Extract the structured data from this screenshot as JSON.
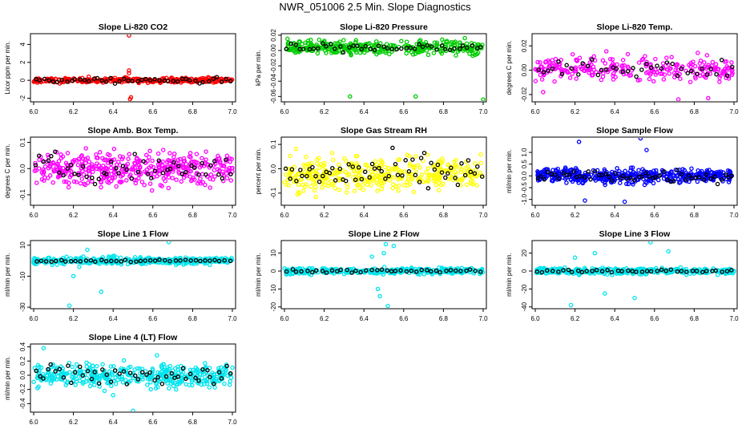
{
  "page": {
    "title": "NWR_051006  2.5 Min. Slope Diagnostics"
  },
  "chart_data": [
    {
      "type": "scatter",
      "title": "Slope Li-820 CO2",
      "ylabel": "Licor ppm per min.",
      "xlim": [
        6.0,
        7.0
      ],
      "ylim": [
        -2.4,
        5.2
      ],
      "xticks": [
        6.0,
        6.2,
        6.4,
        6.6,
        6.8,
        7.0
      ],
      "yticks": [
        -2,
        0,
        2,
        4
      ],
      "colors": {
        "points": "#ff0000",
        "highlight": "#000000"
      },
      "series": {
        "base": 0.0,
        "spread": 0.18,
        "n": 360,
        "nblack": 45,
        "blackSpread": 0.25,
        "outliers": [
          [
            6.48,
            5.0
          ],
          [
            6.48,
            1.1
          ],
          [
            6.48,
            0.8
          ],
          [
            6.49,
            -1.9
          ],
          [
            6.485,
            -2.1
          ]
        ]
      }
    },
    {
      "type": "scatter",
      "title": "Slope Li-820 Pressure",
      "ylabel": "kPa per min.",
      "xlim": [
        6.0,
        7.0
      ],
      "ylim": [
        -0.067,
        0.022
      ],
      "xticks": [
        6.0,
        6.2,
        6.4,
        6.6,
        6.8,
        7.0
      ],
      "yticks": [
        -0.06,
        -0.04,
        -0.02,
        0.0,
        0.02
      ],
      "colors": {
        "points": "#00cc00",
        "highlight": "#000000"
      },
      "series": {
        "base": 0.004,
        "spread": 0.0065,
        "n": 360,
        "nblack": 45,
        "blackSpread": 0.004,
        "outliers": [
          [
            6.33,
            -0.06
          ],
          [
            6.66,
            -0.06
          ],
          [
            7.0,
            -0.064
          ]
        ]
      }
    },
    {
      "type": "scatter",
      "title": "Slope Li-820 Temp.",
      "ylabel": "degrees C per min.",
      "xlim": [
        6.0,
        7.0
      ],
      "ylim": [
        -0.026,
        0.03
      ],
      "xticks": [
        6.0,
        6.2,
        6.4,
        6.6,
        6.8,
        7.0
      ],
      "yticks": [
        -0.02,
        0.0,
        0.02
      ],
      "colors": {
        "points": "#ff00ff",
        "highlight": "#000000"
      },
      "series": {
        "base": 0.001,
        "spread": 0.007,
        "n": 260,
        "nblack": 40,
        "blackSpread": 0.005,
        "outliers": [
          [
            6.87,
            -0.023
          ],
          [
            6.72,
            -0.024
          ],
          [
            6.04,
            -0.018
          ]
        ]
      }
    },
    {
      "type": "scatter",
      "title": "Slope Amb. Box Temp.",
      "ylabel": "degrees C per min.",
      "xlim": [
        6.0,
        7.0
      ],
      "ylim": [
        -0.14,
        0.12
      ],
      "xticks": [
        6.0,
        6.2,
        6.4,
        6.6,
        6.8,
        7.0
      ],
      "yticks": [
        -0.1,
        0.0,
        0.1
      ],
      "colors": {
        "points": "#ff00ff",
        "highlight": "#000000"
      },
      "series": {
        "base": 0.0,
        "spread": 0.045,
        "n": 420,
        "nblack": 50,
        "blackSpread": 0.04,
        "outliers": []
      }
    },
    {
      "type": "scatter",
      "title": "Slope Gas Stream RH",
      "ylabel": "percent per min.",
      "xlim": [
        6.0,
        7.0
      ],
      "ylim": [
        -0.15,
        0.13
      ],
      "xticks": [
        6.0,
        6.2,
        6.4,
        6.6,
        6.8,
        7.0
      ],
      "yticks": [
        -0.1,
        0.0,
        0.1
      ],
      "colors": {
        "points": "#ffff00",
        "highlight": "#000000"
      },
      "series": {
        "base": -0.02,
        "spread": 0.05,
        "n": 380,
        "nblack": 60,
        "blackSpread": 0.05,
        "outliers": []
      }
    },
    {
      "type": "scatter",
      "title": "Slope Sample Flow",
      "ylabel": "ml/min per min.",
      "xlim": [
        6.0,
        7.0
      ],
      "ylim": [
        -1.25,
        1.65
      ],
      "xticks": [
        6.0,
        6.2,
        6.4,
        6.6,
        6.8,
        7.0
      ],
      "yticks": [
        -1.0,
        -0.5,
        0.0,
        0.5,
        1.0
      ],
      "colors": {
        "points": "#0000ff",
        "highlight": "#000000"
      },
      "series": {
        "base": 0.0,
        "spread": 0.22,
        "n": 440,
        "nblack": 55,
        "blackSpread": 0.22,
        "outliers": [
          [
            6.22,
            1.45
          ],
          [
            6.53,
            1.6
          ],
          [
            6.25,
            -1.05
          ],
          [
            6.56,
            1.1
          ],
          [
            6.45,
            -1.1
          ]
        ]
      }
    },
    {
      "type": "scatter",
      "title": "Slope Line 1 Flow",
      "ylabel": "ml/min per min.",
      "xlim": [
        6.0,
        7.0
      ],
      "ylim": [
        -31,
        13
      ],
      "xticks": [
        6.0,
        6.2,
        6.4,
        6.6,
        6.8,
        7.0
      ],
      "yticks": [
        -30,
        -10,
        10
      ],
      "colors": {
        "points": "#00e5ee",
        "highlight": "#000000"
      },
      "series": {
        "base": 0.0,
        "spread": 1.6,
        "n": 360,
        "nblack": 40,
        "blackSpread": 0.6,
        "outliers": [
          [
            6.18,
            -29
          ],
          [
            6.34,
            -20
          ],
          [
            6.2,
            -10
          ],
          [
            6.27,
            7
          ],
          [
            6.68,
            12
          ],
          [
            6.23,
            -4
          ]
        ]
      }
    },
    {
      "type": "scatter",
      "title": "Slope Line 2 Flow",
      "ylabel": "ml/min per min.",
      "xlim": [
        6.0,
        7.0
      ],
      "ylim": [
        -21,
        17
      ],
      "xticks": [
        6.0,
        6.2,
        6.4,
        6.6,
        6.8,
        7.0
      ],
      "yticks": [
        -20,
        -10,
        0,
        10
      ],
      "colors": {
        "points": "#00e5ee",
        "highlight": "#000000"
      },
      "series": {
        "base": 0.0,
        "spread": 1.2,
        "n": 360,
        "nblack": 40,
        "blackSpread": 0.6,
        "outliers": [
          [
            6.52,
            -19.5
          ],
          [
            6.55,
            14
          ],
          [
            6.51,
            15
          ],
          [
            6.48,
            -14
          ],
          [
            6.44,
            8
          ],
          [
            6.5,
            10
          ],
          [
            6.47,
            -10
          ]
        ]
      }
    },
    {
      "type": "scatter",
      "title": "Slope Line 3 Flow",
      "ylabel": "ml/min per min.",
      "xlim": [
        6.0,
        7.0
      ],
      "ylim": [
        -42,
        34
      ],
      "xticks": [
        6.0,
        6.2,
        6.4,
        6.6,
        6.8,
        7.0
      ],
      "yticks": [
        -40,
        -20,
        0,
        20
      ],
      "colors": {
        "points": "#00e5ee",
        "highlight": "#000000"
      },
      "series": {
        "base": 0.0,
        "spread": 2.5,
        "n": 360,
        "nblack": 40,
        "blackSpread": 1.2,
        "outliers": [
          [
            6.18,
            -38
          ],
          [
            6.58,
            32
          ],
          [
            6.3,
            20
          ],
          [
            6.5,
            -30
          ],
          [
            6.35,
            -25
          ],
          [
            6.67,
            22
          ],
          [
            6.2,
            15
          ]
        ]
      }
    },
    {
      "type": "scatter",
      "title": "Slope Line 4 (LT) Flow",
      "ylabel": "ml/min per min.",
      "xlim": [
        6.0,
        7.0
      ],
      "ylim": [
        -0.52,
        0.44
      ],
      "xticks": [
        6.0,
        6.2,
        6.4,
        6.6,
        6.8,
        7.0
      ],
      "yticks": [
        -0.4,
        -0.2,
        0.0,
        0.2,
        0.4
      ],
      "colors": {
        "points": "#00e5ee",
        "highlight": "#000000"
      },
      "series": {
        "base": 0.0,
        "spread": 0.11,
        "n": 420,
        "nblack": 50,
        "blackSpread": 0.1,
        "outliers": [
          [
            6.05,
            0.38
          ],
          [
            6.4,
            -0.28
          ],
          [
            6.5,
            -0.5
          ],
          [
            6.62,
            0.28
          ]
        ]
      }
    }
  ]
}
